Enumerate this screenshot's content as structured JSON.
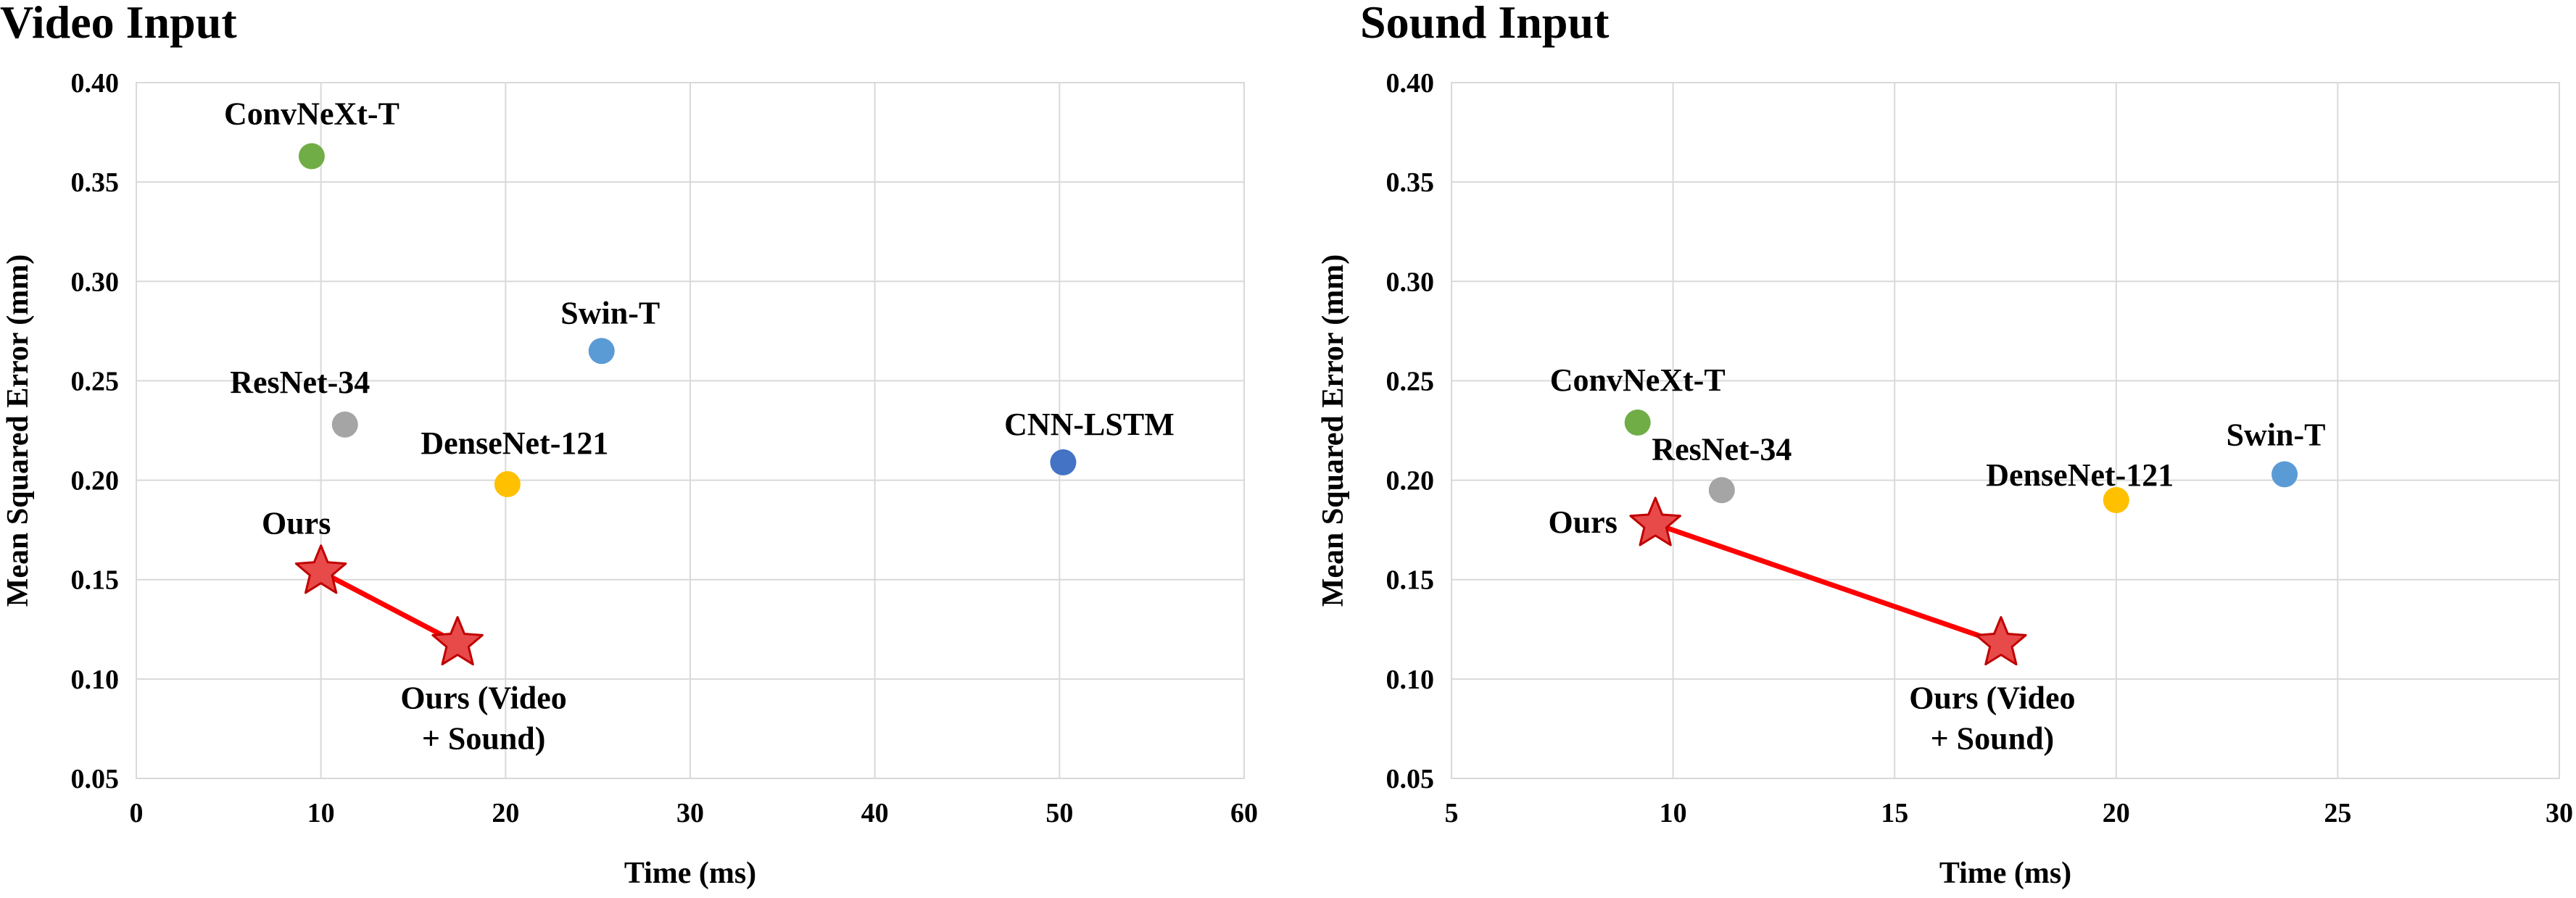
{
  "chart_data": [
    {
      "type": "scatter",
      "title": "Video Input",
      "xlabel": "Time (ms)",
      "ylabel": "Mean Squared Error (mm)",
      "xlim": [
        0,
        60
      ],
      "ylim": [
        0.05,
        0.4
      ],
      "xticks": [
        0,
        10,
        20,
        30,
        40,
        50,
        60
      ],
      "yticks": [
        0.05,
        0.1,
        0.15,
        0.2,
        0.25,
        0.3,
        0.35,
        0.4
      ],
      "grid": true,
      "points": [
        {
          "label": "ConvNeXt-T",
          "x": 9.5,
          "y": 0.363,
          "color": "#70ad47"
        },
        {
          "label": "Swin-T",
          "x": 25.2,
          "y": 0.265,
          "color": "#5b9bd5"
        },
        {
          "label": "ResNet-34",
          "x": 11.3,
          "y": 0.228,
          "color": "#a5a5a5"
        },
        {
          "label": "DenseNet-121",
          "x": 20.1,
          "y": 0.198,
          "color": "#ffc000"
        },
        {
          "label": "CNN-LSTM",
          "x": 50.2,
          "y": 0.209,
          "color": "#4472c4"
        }
      ],
      "ours": [
        {
          "label": "Ours",
          "x": 10.0,
          "y": 0.154
        },
        {
          "label": "Ours (Video + Sound)",
          "label_lines": [
            "Ours (Video",
            "+ Sound)"
          ],
          "x": 17.4,
          "y": 0.118
        }
      ],
      "ours_color": "#e84a4a",
      "connector_color": "#ff0000"
    },
    {
      "type": "scatter",
      "title": "Sound Input",
      "xlabel": "Time (ms)",
      "ylabel": "Mean Squared Error (mm)",
      "xlim": [
        5,
        30
      ],
      "ylim": [
        0.05,
        0.4
      ],
      "xticks": [
        5,
        10,
        15,
        20,
        25,
        30
      ],
      "yticks": [
        0.05,
        0.1,
        0.15,
        0.2,
        0.25,
        0.3,
        0.35,
        0.4
      ],
      "grid": true,
      "points": [
        {
          "label": "ConvNeXt-T",
          "x": 9.2,
          "y": 0.229,
          "color": "#70ad47"
        },
        {
          "label": "ResNet-34",
          "x": 11.1,
          "y": 0.195,
          "color": "#a5a5a5"
        },
        {
          "label": "DenseNet-121",
          "x": 20.0,
          "y": 0.19,
          "color": "#ffc000"
        },
        {
          "label": "Swin-T",
          "x": 23.8,
          "y": 0.203,
          "color": "#5b9bd5"
        }
      ],
      "ours": [
        {
          "label": "Ours",
          "x": 9.6,
          "y": 0.178
        },
        {
          "label": "Ours (Video + Sound)",
          "label_lines": [
            "Ours (Video",
            "+ Sound)"
          ],
          "x": 17.4,
          "y": 0.118
        }
      ],
      "ours_color": "#e84a4a",
      "connector_color": "#ff0000"
    }
  ]
}
